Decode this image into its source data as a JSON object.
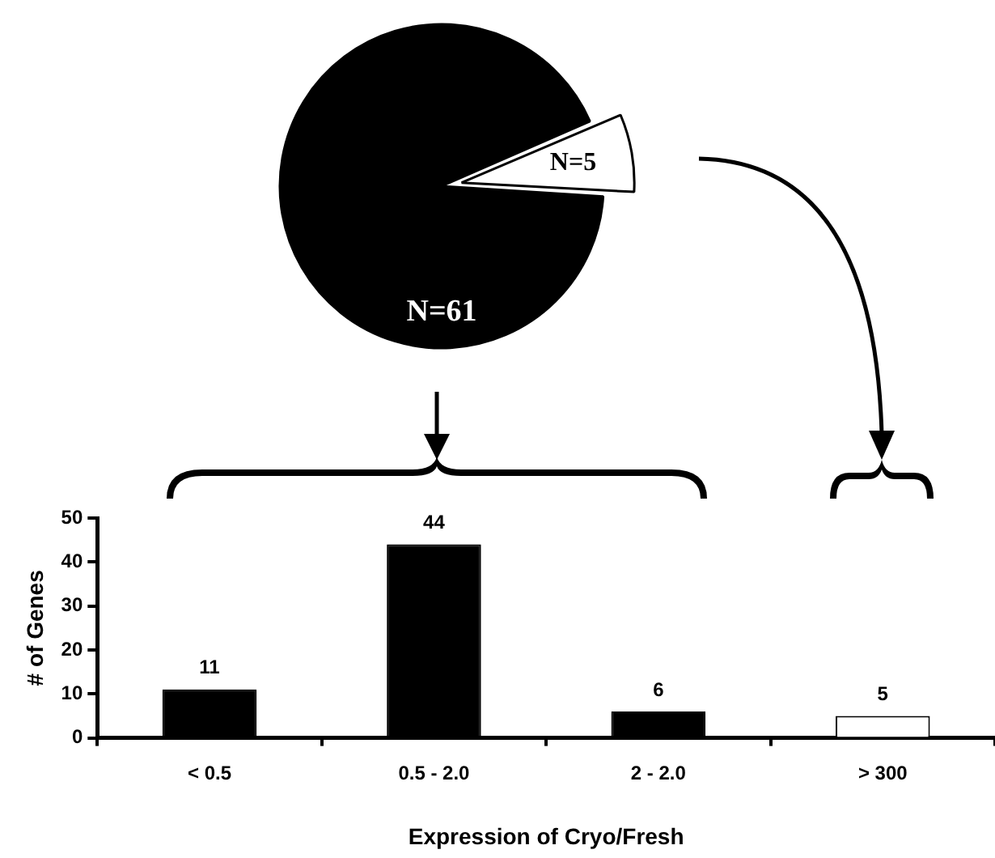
{
  "chart_data": [
    {
      "type": "pie",
      "categories": [
        null,
        null
      ],
      "values": [
        61,
        5
      ],
      "colors": [
        "#000000",
        "#ffffff"
      ],
      "value_labels": [
        "N=61",
        "N=5"
      ]
    },
    {
      "type": "bar",
      "categories": [
        "< 0.5",
        "0.5 - 2.0",
        "2 - 2.0",
        "> 300"
      ],
      "values": [
        11,
        44,
        6,
        5
      ],
      "colors": [
        "#000000",
        "#000000",
        "#000000",
        "#ffffff"
      ],
      "data_labels": true,
      "xlabel": "Expression of Cryo/Fresh",
      "ylabel": "# of Genes",
      "ylim": [
        0,
        50
      ],
      "yticks": [
        0,
        10,
        20,
        30,
        40,
        50
      ],
      "grid": false
    }
  ]
}
